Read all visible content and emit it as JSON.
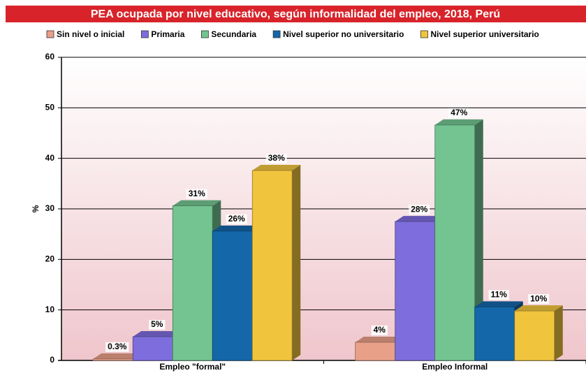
{
  "chart_data": {
    "type": "bar3d",
    "title": "PEA ocupada por nivel educativo, según informalidad del empleo, 2018, Perú",
    "y_label": "%",
    "categories": [
      "Empleo \"formal\"",
      "Empleo Informal"
    ],
    "series": [
      {
        "name": "Sin nivel o inicial",
        "color": "#e8a088",
        "values": [
          0.3,
          3.6
        ],
        "value_labels": [
          "0.3%",
          "4%"
        ]
      },
      {
        "name": "Primaria",
        "color": "#7e6ddc",
        "values": [
          4.7,
          27.5
        ],
        "value_labels": [
          "5%",
          "28%"
        ]
      },
      {
        "name": "Secundaria",
        "color": "#73c491",
        "values": [
          30.6,
          46.6
        ],
        "value_labels": [
          "31%",
          "47%"
        ]
      },
      {
        "name": "Nivel superior no universitario",
        "color": "#1467a9",
        "values": [
          25.6,
          10.6
        ],
        "value_labels": [
          "26%",
          "11%"
        ]
      },
      {
        "name": "Nivel superior universitario",
        "color": "#f0c43d",
        "values": [
          37.6,
          9.8
        ],
        "value_labels": [
          "38%",
          "10%"
        ]
      }
    ],
    "ylim": [
      0,
      60
    ],
    "yticks": [
      0,
      10,
      20,
      30,
      40,
      50,
      60
    ],
    "grid": true
  }
}
